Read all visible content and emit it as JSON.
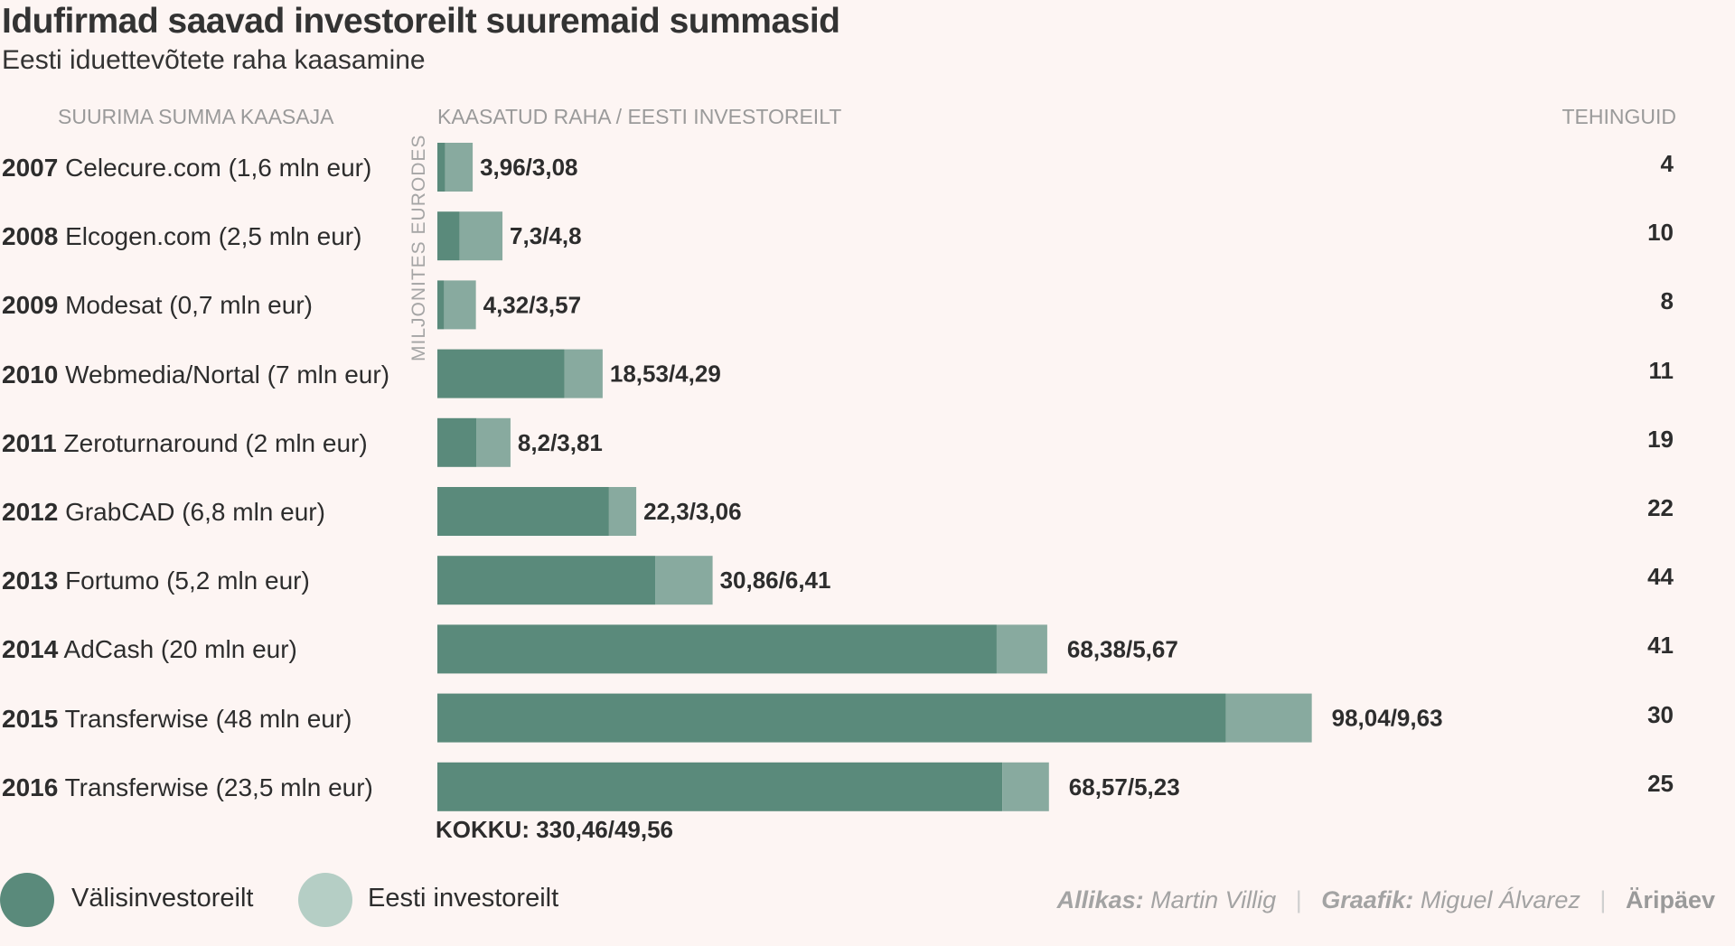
{
  "title": "Idufirmad saavad investoreilt suuremaid summasid",
  "subtitle": "Eesti iduettevõtete raha kaasamine",
  "headers": {
    "left": "SUURIMA SUMMA KAASAJA",
    "middle": "KAASATUD RAHA / EESTI INVESTOREILT",
    "right": "TEHINGUID"
  },
  "axis_label": "MILJONITES EURODES",
  "total_label": "KOKKU: 330,46/49,56",
  "legend": [
    {
      "label": "Välisinvestoreilt",
      "color": "#5a8a7b"
    },
    {
      "label": "Eesti investoreilt",
      "color": "#b5cec5"
    }
  ],
  "footer": {
    "source_label": "Allikas:",
    "source": "Martin Villig",
    "graphic_label": "Graafik:",
    "graphic": "Miguel Álvarez",
    "brand": "Äripäev"
  },
  "colors": {
    "foreign": "#5a8a7b",
    "estonian": "#88aa9f",
    "background": "#fdf5f3"
  },
  "chart_data": {
    "type": "bar",
    "orientation": "horizontal",
    "stacked": true,
    "title": "Idufirmad saavad investoreilt suuremaid summasid",
    "subtitle": "Eesti iduettevõtete raha kaasamine",
    "xlabel": "MILJONITES EURODES",
    "ylabel": "",
    "xlim": [
      0,
      100
    ],
    "grid": false,
    "legend_position": "bottom-left",
    "categories": [
      "2007",
      "2008",
      "2009",
      "2010",
      "2011",
      "2012",
      "2013",
      "2014",
      "2015",
      "2016"
    ],
    "rows": [
      {
        "year": "2007",
        "top_raiser": "Celecure.com (1,6 mln eur)",
        "total": 3.96,
        "estonian": 3.08,
        "label": "3,96/3,08",
        "deals": 4
      },
      {
        "year": "2008",
        "top_raiser": "Elcogen.com (2,5 mln eur)",
        "total": 7.3,
        "estonian": 4.8,
        "label": "7,3/4,8",
        "deals": 10
      },
      {
        "year": "2009",
        "top_raiser": "Modesat (0,7 mln eur)",
        "total": 4.32,
        "estonian": 3.57,
        "label": "4,32/3,57",
        "deals": 8
      },
      {
        "year": "2010",
        "top_raiser": "Webmedia/Nortal (7 mln eur)",
        "total": 18.53,
        "estonian": 4.29,
        "label": "18,53/4,29",
        "deals": 11
      },
      {
        "year": "2011",
        "top_raiser": "Zeroturnaround (2 mln eur)",
        "total": 8.2,
        "estonian": 3.81,
        "label": "8,2/3,81",
        "deals": 19
      },
      {
        "year": "2012",
        "top_raiser": "GrabCAD (6,8 mln eur)",
        "total": 22.3,
        "estonian": 3.06,
        "label": "22,3/3,06",
        "deals": 22
      },
      {
        "year": "2013",
        "top_raiser": "Fortumo (5,2 mln eur)",
        "total": 30.86,
        "estonian": 6.41,
        "label": "30,86/6,41",
        "deals": 44
      },
      {
        "year": "2014",
        "top_raiser": "AdCash (20 mln eur)",
        "total": 68.38,
        "estonian": 5.67,
        "label": "68,38/5,67",
        "deals": 41
      },
      {
        "year": "2015",
        "top_raiser": "Transferwise (48 mln eur)",
        "total": 98.04,
        "estonian": 9.63,
        "label": "98,04/9,63",
        "deals": 30
      },
      {
        "year": "2016",
        "top_raiser": "Transferwise (23,5 mln eur)",
        "total": 68.57,
        "estonian": 5.23,
        "label": "68,57/5,23",
        "deals": 25
      }
    ],
    "series": [
      {
        "name": "Välisinvestoreilt",
        "values": [
          0.88,
          2.5,
          0.75,
          14.24,
          4.39,
          19.24,
          24.45,
          62.71,
          88.41,
          63.34
        ]
      },
      {
        "name": "Eesti investoreilt",
        "values": [
          3.08,
          4.8,
          3.57,
          4.29,
          3.81,
          3.06,
          6.41,
          5.67,
          9.63,
          5.23
        ]
      }
    ],
    "totals": {
      "total": 330.46,
      "estonian": 49.56,
      "label": "KOKKU: 330,46/49,56"
    }
  }
}
